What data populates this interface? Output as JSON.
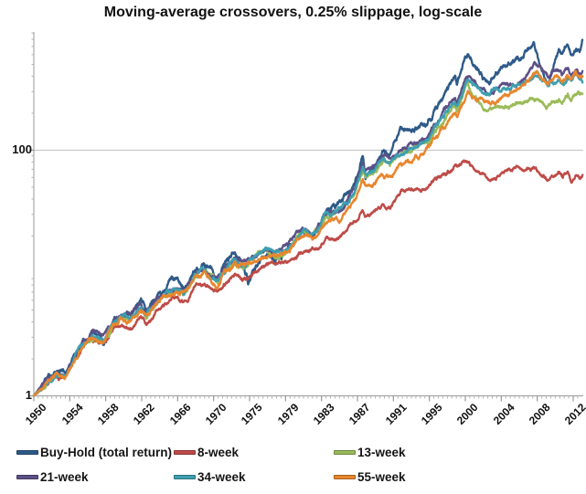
{
  "title": "Moving-average crossovers, 0.25% slippage, log-scale",
  "colors": {
    "background": "#ffffff",
    "grid": "#c8c8c8",
    "axis": "#999999",
    "minor_tick": "#b3b3b3",
    "text": "#111111"
  },
  "chart_data": {
    "type": "line",
    "title": "Moving-average crossovers, 0.25% slippage, log-scale",
    "legend_position": "bottom",
    "grid": "horizontal gridline at y=100 only",
    "x_axis": {
      "tick_labels": [
        "1950",
        "1954",
        "1958",
        "1962",
        "1966",
        "1970",
        "1975",
        "1979",
        "1983",
        "1987",
        "1991",
        "1995",
        "2000",
        "2004",
        "2008",
        "2012"
      ],
      "tick_years": [
        1950,
        1954,
        1958,
        1962,
        1966,
        1970,
        1975,
        1979,
        1983,
        1987,
        1991,
        1995,
        2000,
        2004,
        2008,
        2012
      ],
      "label_rotation_deg": -45
    },
    "y_axis": {
      "scale": "log",
      "tick_labels": [
        "1",
        "100"
      ],
      "tick_values": [
        1,
        100
      ],
      "range": [
        1,
        900
      ]
    },
    "x_anchors": [
      1950,
      1951.5,
      1952.5,
      1953.5,
      1954.5,
      1955.5,
      1956.5,
      1957.8,
      1958.8,
      1959.8,
      1960.8,
      1961.9,
      1962.5,
      1963.8,
      1964.8,
      1965.8,
      1966.7,
      1967.8,
      1968.9,
      1969.8,
      1970.5,
      1971.5,
      1972.9,
      1974.0,
      1974.8,
      1975.5,
      1976.8,
      1977.8,
      1978.8,
      1979.8,
      1980.9,
      1981.7,
      1982.5,
      1983.5,
      1984.5,
      1985.8,
      1986.7,
      1987.6,
      1987.9,
      1988.8,
      1989.8,
      1990.6,
      1991.8,
      1992.8,
      1993.8,
      1994.8,
      1995.8,
      1996.8,
      1997.8,
      1998.6,
      1998.85,
      1999.9,
      2000.3,
      2000.9,
      2001.8,
      2002.6,
      2003.8,
      2004.8,
      2005.8,
      2006.8,
      2007.6,
      2008.7,
      2009.15,
      2009.9,
      2010.4,
      2010.8,
      2011.4,
      2011.8,
      2012.3,
      2012.7,
      2013.05
    ],
    "series": [
      {
        "name": "Buy-Hold (total return)",
        "color": "#2E5A88",
        "vol": 1.0,
        "values": [
          1.0,
          1.35,
          1.55,
          1.48,
          2.05,
          2.85,
          3.25,
          2.75,
          4.0,
          4.6,
          4.55,
          5.7,
          4.7,
          6.3,
          7.4,
          8.6,
          7.4,
          10.2,
          11.9,
          9.8,
          8.8,
          11.5,
          14.8,
          12.0,
          7.9,
          11.0,
          14.3,
          13.2,
          14.8,
          17.5,
          22.5,
          21.0,
          22.0,
          31,
          33,
          44,
          54,
          92,
          62,
          72,
          95,
          85,
          140,
          150,
          160,
          175,
          215,
          265,
          340,
          410,
          350,
          560,
          615,
          520,
          430,
          360,
          460,
          500,
          545,
          630,
          745,
          450,
          355,
          545,
          640,
          585,
          700,
          600,
          690,
          650,
          800
        ]
      },
      {
        "name": "8-week",
        "color": "#BE4B48",
        "vol": 0.7,
        "values": [
          1.0,
          1.28,
          1.45,
          1.42,
          1.95,
          2.6,
          2.85,
          2.6,
          3.5,
          3.8,
          3.75,
          4.4,
          3.9,
          4.9,
          5.6,
          6.3,
          5.8,
          7.4,
          8.3,
          7.4,
          7.0,
          8.3,
          9.6,
          9.0,
          9.3,
          10.4,
          11.6,
          11.2,
          11.8,
          12.8,
          15.2,
          14.4,
          15.5,
          19.5,
          19.0,
          23.5,
          27,
          31,
          28,
          30,
          36,
          34,
          46,
          48,
          50,
          48,
          56,
          61,
          68,
          71,
          69,
          86,
          84,
          73,
          64,
          58,
          66,
          68,
          70,
          72,
          74,
          60,
          54,
          62,
          66,
          60,
          70,
          57,
          65,
          61,
          63
        ]
      },
      {
        "name": "13-week",
        "color": "#9BBB59",
        "vol": 0.8,
        "values": [
          1.0,
          1.3,
          1.5,
          1.46,
          2.0,
          2.75,
          3.05,
          2.8,
          3.8,
          4.25,
          4.2,
          5.0,
          4.4,
          5.7,
          6.7,
          7.6,
          7.0,
          9.0,
          10.2,
          9.0,
          8.5,
          10.3,
          12.2,
          11.2,
          11.5,
          13.2,
          15.2,
          14.2,
          15.2,
          16.8,
          21.5,
          20.0,
          21.5,
          28,
          28.5,
          36,
          44,
          72,
          60,
          66,
          82,
          76,
          92,
          100,
          110,
          118,
          148,
          172,
          210,
          235,
          215,
          295,
          325,
          272,
          232,
          205,
          222,
          230,
          238,
          248,
          262,
          235,
          228,
          248,
          262,
          248,
          285,
          258,
          295,
          285,
          310
        ]
      },
      {
        "name": "21-week",
        "color": "#5C5086",
        "vol": 0.8,
        "values": [
          1.0,
          1.31,
          1.52,
          1.47,
          2.02,
          2.8,
          3.1,
          2.85,
          3.9,
          4.35,
          4.3,
          5.2,
          4.6,
          5.9,
          6.9,
          7.9,
          7.2,
          9.3,
          10.6,
          9.4,
          8.9,
          10.8,
          12.8,
          11.8,
          12.1,
          13.8,
          16.0,
          15.0,
          16.0,
          18.2,
          23,
          21.5,
          23,
          30,
          30.5,
          39,
          48,
          80,
          67,
          74,
          90,
          84,
          100,
          108,
          118,
          128,
          160,
          190,
          235,
          262,
          245,
          355,
          415,
          360,
          318,
          295,
          330,
          342,
          362,
          400,
          478,
          430,
          400,
          435,
          450,
          425,
          468,
          430,
          472,
          450,
          470
        ]
      },
      {
        "name": "34-week",
        "color": "#3E9FB0",
        "vol": 0.8,
        "values": [
          1.0,
          1.3,
          1.51,
          1.46,
          2.0,
          2.78,
          3.07,
          2.82,
          3.85,
          4.3,
          4.25,
          5.1,
          4.5,
          5.8,
          6.8,
          7.7,
          7.1,
          9.1,
          10.4,
          9.2,
          8.7,
          10.5,
          12.5,
          11.5,
          11.8,
          13.5,
          15.6,
          14.6,
          15.6,
          17.5,
          22.2,
          20.8,
          22.2,
          29,
          29.5,
          37.5,
          46,
          76,
          63,
          70,
          86,
          80,
          96,
          103,
          112,
          122,
          152,
          180,
          222,
          250,
          232,
          330,
          388,
          340,
          300,
          284,
          308,
          320,
          332,
          352,
          395,
          360,
          332,
          368,
          382,
          358,
          398,
          362,
          398,
          378,
          352
        ]
      },
      {
        "name": "55-week",
        "color": "#E8862D",
        "vol": 0.8,
        "values": [
          1.0,
          1.29,
          1.49,
          1.45,
          1.98,
          2.72,
          3.0,
          2.78,
          3.75,
          4.2,
          4.15,
          4.95,
          4.35,
          5.6,
          6.6,
          7.4,
          6.9,
          8.8,
          10.0,
          8.9,
          8.3,
          10.0,
          11.9,
          11.0,
          11.3,
          12.8,
          14.8,
          13.9,
          14.8,
          16.2,
          20.5,
          19.2,
          20.5,
          25.5,
          26,
          31.5,
          38.5,
          56,
          50,
          53,
          62,
          58,
          72,
          78,
          88,
          108,
          125,
          148,
          175,
          195,
          182,
          258,
          300,
          270,
          250,
          240,
          268,
          285,
          310,
          352,
          428,
          360,
          338,
          372,
          390,
          368,
          415,
          375,
          415,
          398,
          390
        ]
      }
    ]
  }
}
